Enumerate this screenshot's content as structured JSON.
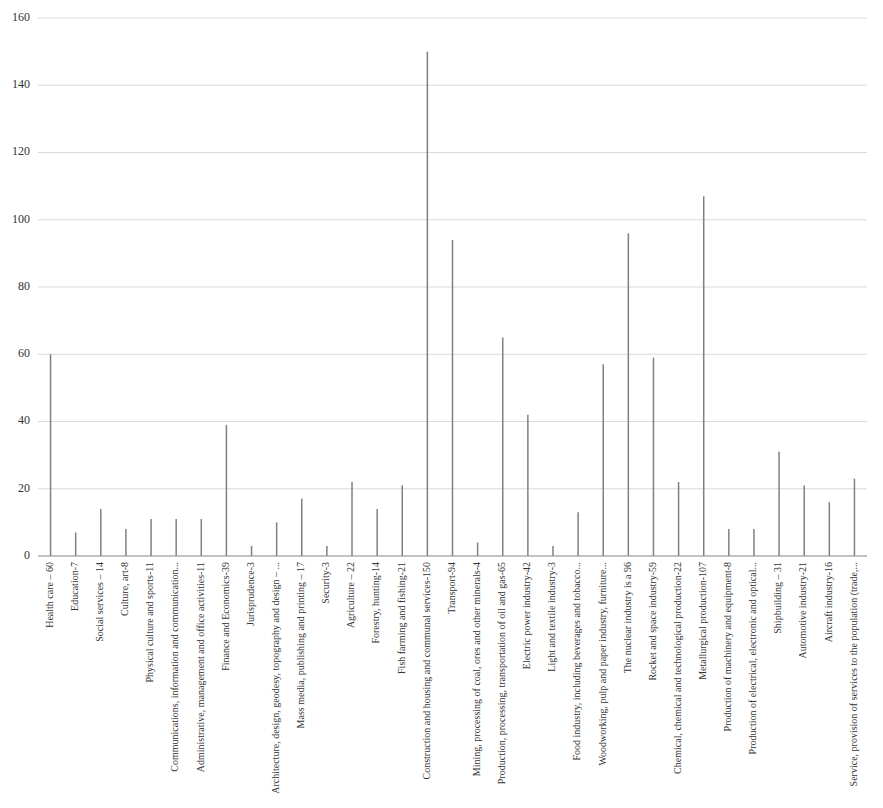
{
  "chart_data": {
    "type": "stem",
    "categories": [
      "Health care – 60",
      "Education-7",
      "Social services – 14",
      "Culture, art-8",
      "Physical culture and sports-11",
      "Communications, information and communication...",
      "Administrative, management and office activities-11",
      "Finance and Economics-39",
      "Jurisprudence-3",
      "Architecture, design, geodesy, topography and design – ...",
      "Mass media, publishing and printing – 17",
      "Security-3",
      "Agriculture – 22",
      "Forestry, hunting-14",
      "Fish farming and fishing-21",
      "Construction and housing and communal services-150",
      "Transport-94",
      "Mining, processing of coal, ores and other minerals-4",
      "Production, processing, transportation of oil and gas-65",
      "Electric power industry-42",
      "Light and textile industry-3",
      "Food industry, including beverages and tobacco...",
      "Woodworking, pulp and paper industry, furniture...",
      "The nuclear industry is a 96",
      "Rocket and space industry-59",
      "Chemical, chemical and technological production-22",
      "Metallurgical production-107",
      "Production of machinery and equipment-8",
      "Production of electrical, electronic and optical...",
      "Shipbuilding – 31",
      "Automotive industry-21",
      "Aircraft industry-16",
      "Service, provision of services to the population (trade,..."
    ],
    "values": [
      60,
      7,
      14,
      8,
      11,
      11,
      11,
      39,
      3,
      10,
      17,
      3,
      22,
      14,
      21,
      150,
      94,
      4,
      65,
      42,
      3,
      13,
      57,
      96,
      59,
      22,
      107,
      8,
      8,
      31,
      21,
      16,
      23
    ],
    "color": "#808080",
    "ylim": [
      0,
      160
    ],
    "yticks": [
      0,
      20,
      40,
      60,
      80,
      100,
      120,
      140,
      160
    ],
    "grid": true
  }
}
